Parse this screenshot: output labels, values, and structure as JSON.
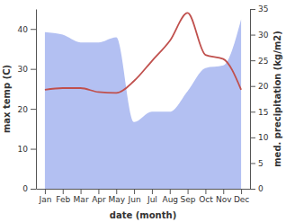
{
  "chart_data": {
    "type": "line",
    "xlabel": "date (month)",
    "ylabel": "max temp (C)",
    "y2label": "med. precipitation (kg/m2)",
    "categories": [
      "Jan",
      "Feb",
      "Mar",
      "Apr",
      "May",
      "Jun",
      "Jul",
      "Aug",
      "Sep",
      "Oct",
      "Nov",
      "Dec"
    ],
    "series": [
      {
        "name": "max temp",
        "type": "line",
        "color": "#c0504d",
        "axis": "y",
        "values": [
          24.8,
          25.2,
          25.2,
          24.2,
          24,
          27,
          32,
          37,
          44,
          33.5,
          32.5,
          24.8
        ]
      },
      {
        "name": "med. precipitation",
        "type": "area",
        "color": "#b3c0f2",
        "axis": "y2",
        "values": [
          30.5,
          30,
          28.5,
          28.5,
          29.5,
          13,
          15,
          15,
          19,
          23.5,
          24,
          33
        ]
      }
    ],
    "ylim": [
      0,
      45
    ],
    "yticks": [
      0,
      10,
      20,
      30,
      40
    ],
    "y2lim": [
      0,
      35
    ],
    "y2ticks": [
      0,
      5,
      10,
      15,
      20,
      25,
      30,
      35
    ]
  }
}
